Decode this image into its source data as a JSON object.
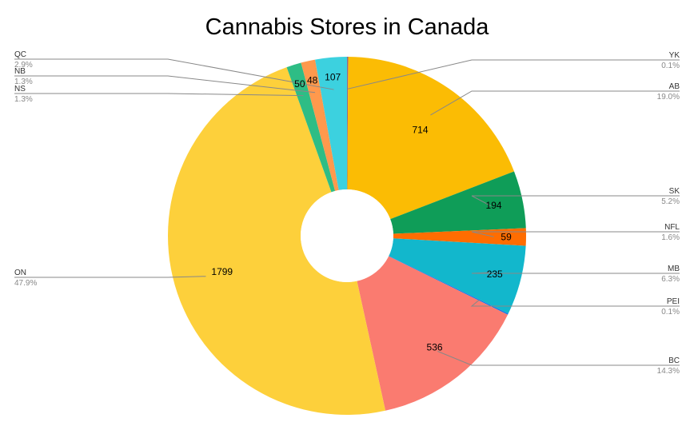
{
  "chart_data": {
    "type": "pie",
    "title": "Cannabis Stores in Canada",
    "donut": true,
    "slices": [
      {
        "name": "YK",
        "value": 4,
        "percent": "0.1%",
        "color": "#8e6a8e",
        "show_value": false,
        "side": "right"
      },
      {
        "name": "AB",
        "value": 714,
        "percent": "19.0%",
        "color": "#fbbc04",
        "show_value": true,
        "side": "right"
      },
      {
        "name": "SK",
        "value": 194,
        "percent": "5.2%",
        "color": "#0f9d58",
        "show_value": true,
        "side": "right"
      },
      {
        "name": "NFL",
        "value": 59,
        "percent": "1.6%",
        "color": "#ff6d01",
        "show_value": true,
        "side": "right"
      },
      {
        "name": "MB",
        "value": 235,
        "percent": "6.3%",
        "color": "#12b7cc",
        "show_value": true,
        "side": "right"
      },
      {
        "name": "PEI",
        "value": 4,
        "percent": "0.1%",
        "color": "#1a73e8",
        "show_value": false,
        "side": "right"
      },
      {
        "name": "BC",
        "value": 536,
        "percent": "14.3%",
        "color": "#fa7b70",
        "show_value": true,
        "side": "right"
      },
      {
        "name": "ON",
        "value": 1799,
        "percent": "47.9%",
        "color": "#fdd03b",
        "show_value": true,
        "side": "left"
      },
      {
        "name": "NS",
        "value": 50,
        "percent": "1.3%",
        "color": "#2ebd85",
        "show_value": true,
        "side": "left"
      },
      {
        "name": "NB",
        "value": 48,
        "percent": "1.3%",
        "color": "#ff994d",
        "show_value": true,
        "side": "left"
      },
      {
        "name": "QC",
        "value": 107,
        "percent": "2.9%",
        "color": "#3cd1df",
        "show_value": true,
        "side": "left"
      }
    ]
  }
}
